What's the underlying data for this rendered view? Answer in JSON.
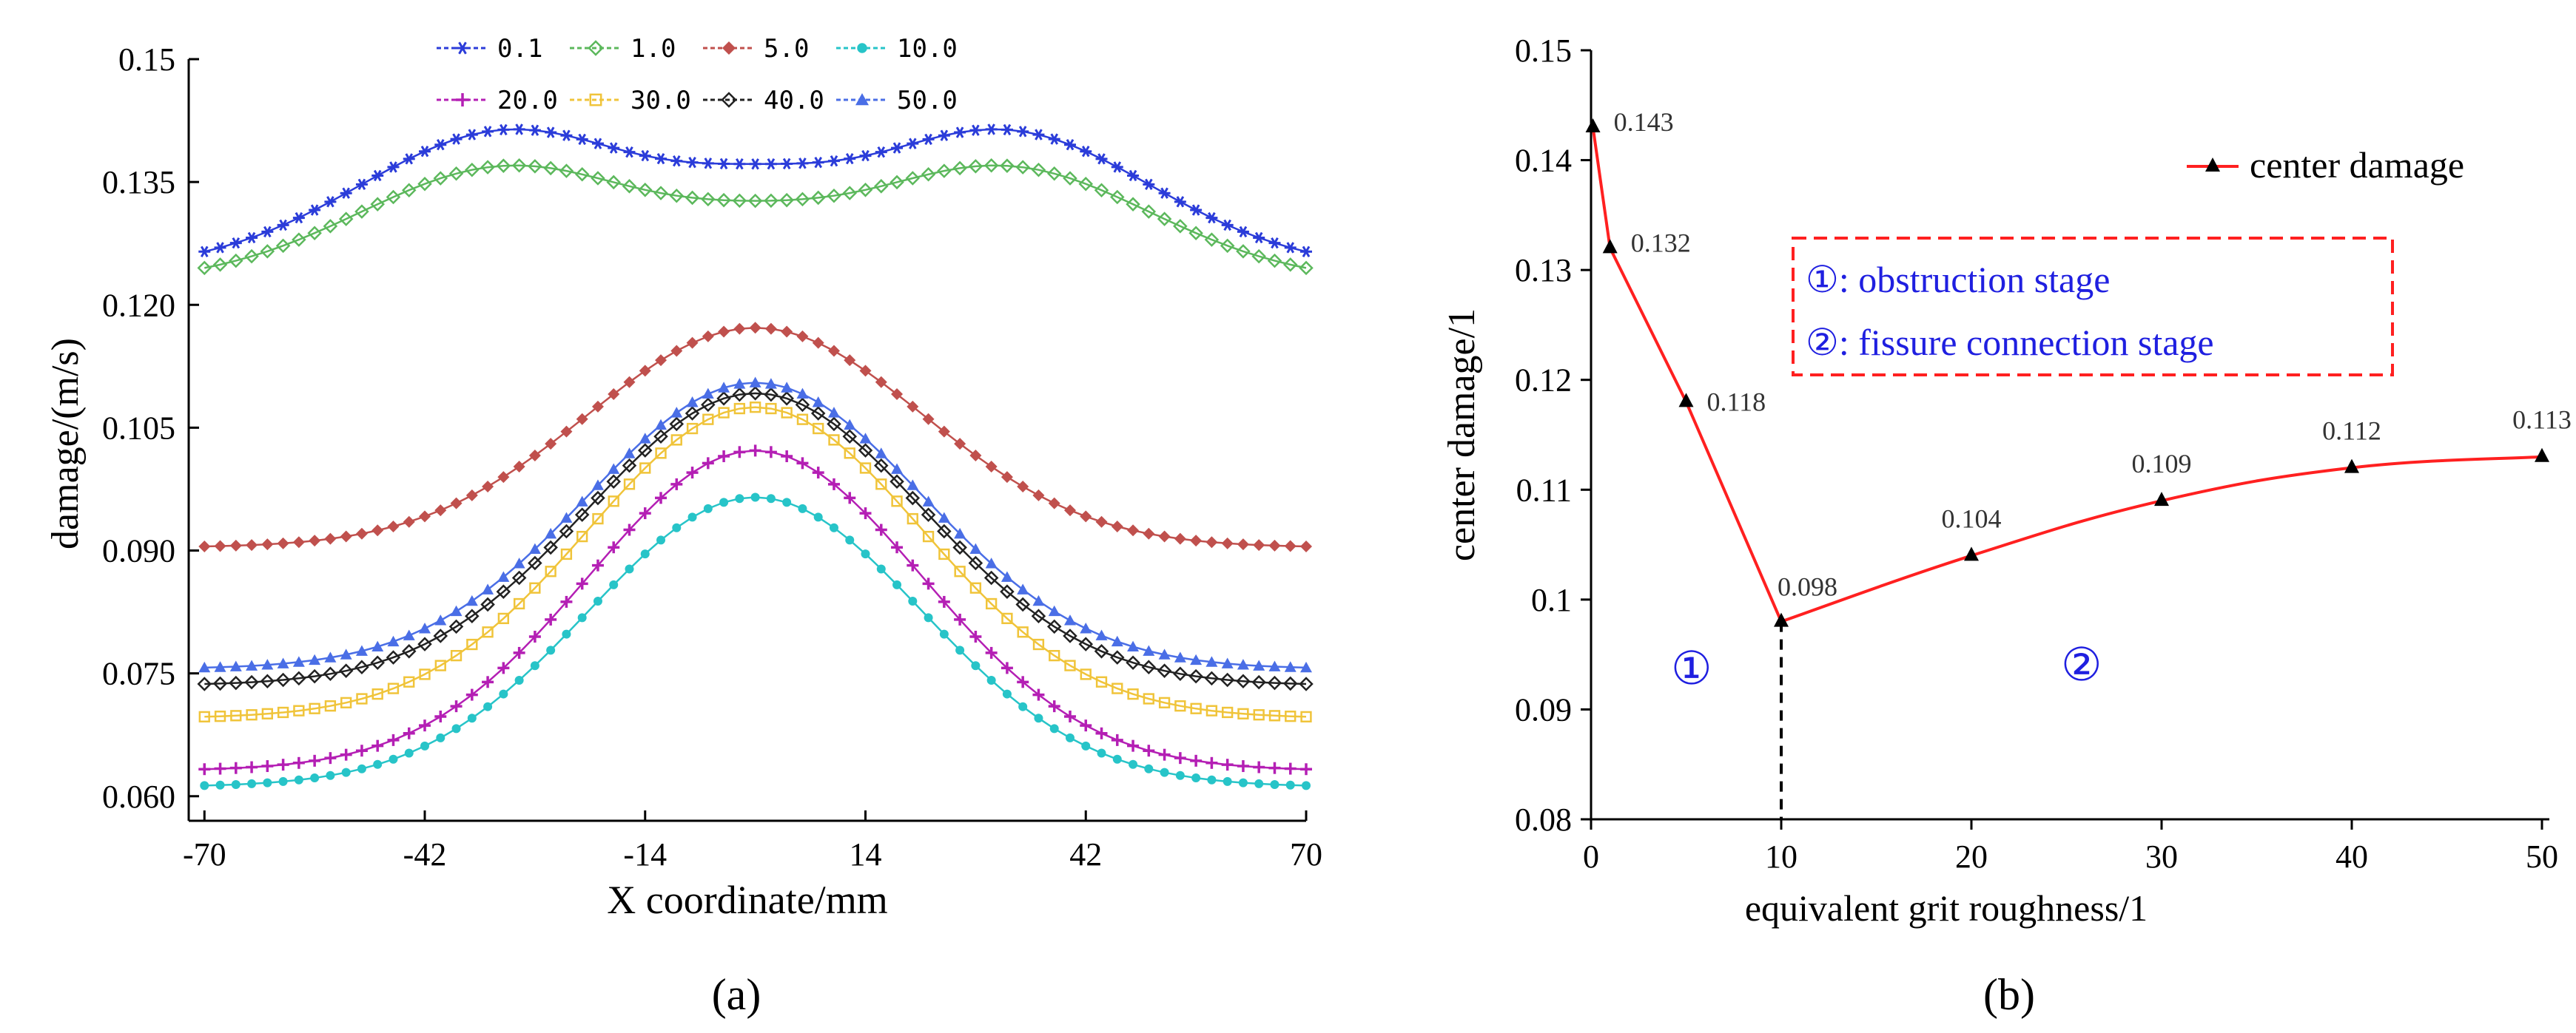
{
  "panels": {
    "a_label": "(a)",
    "b_label": "(b)"
  },
  "chart_data": [
    {
      "id": "a",
      "type": "line",
      "title": "",
      "xlabel": "X coordinate/mm",
      "ylabel": "damage/(m/s)",
      "xlim": [
        -72,
        70
      ],
      "ylim": [
        0.057,
        0.15
      ],
      "xticks": [
        "-70",
        "-42",
        "-14",
        "14",
        "42",
        "70"
      ],
      "xtick_values": [
        -70,
        -42,
        -14,
        14,
        42,
        70
      ],
      "yticks": [
        "0.060",
        "0.075",
        "0.090",
        "0.105",
        "0.120",
        "0.135",
        "0.15"
      ],
      "ytick_values": [
        0.06,
        0.075,
        0.09,
        0.105,
        0.12,
        0.135,
        0.15
      ],
      "legend_placement": "top",
      "series": [
        {
          "name": "0.1",
          "color": "#2b3cd9",
          "marker": "asterisk",
          "shape": "double",
          "edge": 0.1265,
          "center": 0.1372,
          "peak": 0.1414,
          "peak_x": 31
        },
        {
          "name": "1.0",
          "color": "#5cb85c",
          "marker": "diamond-open",
          "shape": "double",
          "edge": 0.1245,
          "center": 0.1327,
          "peak": 0.137,
          "peak_x": 31
        },
        {
          "name": "5.0",
          "color": "#c0504d",
          "marker": "diamond",
          "shape": "single",
          "edge": 0.0905,
          "center": 0.1172
        },
        {
          "name": "10.0",
          "color": "#27c4c8",
          "marker": "dot",
          "shape": "single",
          "edge": 0.0613,
          "center": 0.0965
        },
        {
          "name": "20.0",
          "color": "#b41fb4",
          "marker": "plus",
          "shape": "single",
          "edge": 0.0633,
          "center": 0.1022
        },
        {
          "name": "30.0",
          "color": "#f0c43a",
          "marker": "square-open",
          "shape": "single",
          "edge": 0.0697,
          "center": 0.1075
        },
        {
          "name": "40.0",
          "color": "#222222",
          "marker": "diamond-open",
          "shape": "single",
          "edge": 0.0737,
          "center": 0.1092
        },
        {
          "name": "50.0",
          "color": "#4a6ee6",
          "marker": "triangle",
          "shape": "single",
          "edge": 0.0757,
          "center": 0.1105
        }
      ]
    },
    {
      "id": "b",
      "type": "line",
      "title": "",
      "xlabel": "equivalent grit roughness/1",
      "ylabel": "center damage/1",
      "xlim": [
        0,
        50
      ],
      "ylim": [
        0.08,
        0.15
      ],
      "xticks": [
        "0",
        "10",
        "20",
        "30",
        "40",
        "50"
      ],
      "xtick_values": [
        0,
        10,
        20,
        30,
        40,
        50
      ],
      "yticks": [
        "0.08",
        "0.09",
        "0.1",
        "0.11",
        "0.12",
        "0.13",
        "0.14",
        "0.15"
      ],
      "ytick_values": [
        0.08,
        0.09,
        0.1,
        0.11,
        0.12,
        0.13,
        0.14,
        0.15
      ],
      "legend_placement": "top-right",
      "series": [
        {
          "name": "center damage",
          "color": "#ff2020",
          "x": [
            0.1,
            1,
            5,
            10,
            20,
            30,
            40,
            50
          ],
          "y": [
            0.143,
            0.132,
            0.118,
            0.098,
            0.104,
            0.109,
            0.112,
            0.113
          ],
          "labels": [
            "0.143",
            "0.132",
            "0.118",
            "0.098",
            "0.104",
            "0.109",
            "0.112",
            "0.113"
          ]
        }
      ],
      "annotations": {
        "stage1_line": "①: obstruction stage",
        "stage2_line": "②: fissure connection stage",
        "stage1_marker": "①",
        "stage2_marker": "②",
        "box_color": "#ff2020",
        "divider_x": 10
      }
    }
  ]
}
